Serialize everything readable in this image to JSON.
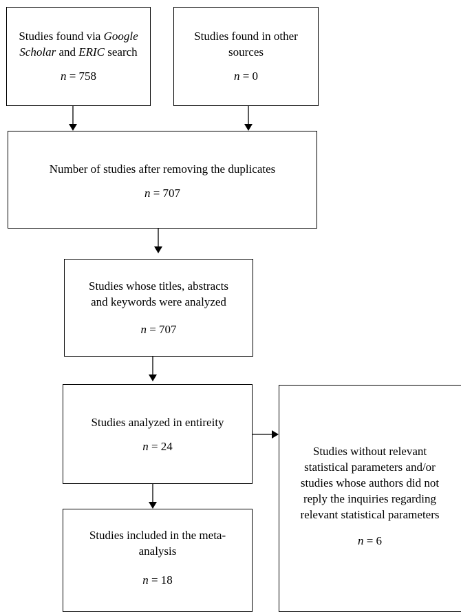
{
  "boxes": {
    "google": {
      "line1_pre": "Studies found via ",
      "line1_em": "Google",
      "line2_em": "Scholar",
      "line2_mid": " and ",
      "line2_em2": "ERIC",
      "line2_post": " search",
      "n_label": "n",
      "n_value": "= 758"
    },
    "other": {
      "line1": "Studies found in other",
      "line2": "sources",
      "n_label": "n",
      "n_value": "= 0"
    },
    "dedup": {
      "line1": "Number of studies after removing the duplicates",
      "n_label": "n",
      "n_value": "= 707"
    },
    "titles": {
      "line1": "Studies whose titles, abstracts",
      "line2": "and keywords were analyzed",
      "n_label": "n",
      "n_value": "= 707"
    },
    "entirety": {
      "line1": "Studies analyzed in entireity",
      "n_label": "n",
      "n_value": "= 24"
    },
    "included": {
      "line1": "Studies included in the meta-",
      "line2": "analysis",
      "n_label": "n",
      "n_value": "= 18"
    },
    "excluded": {
      "line1": "Studies without relevant",
      "line2": "statistical parameters and/or",
      "line3": "studies whose authors did not",
      "line4": "reply the inquiries regarding",
      "line5": "relevant statistical parameters",
      "n_label": "n",
      "n_value": "= 6"
    }
  }
}
